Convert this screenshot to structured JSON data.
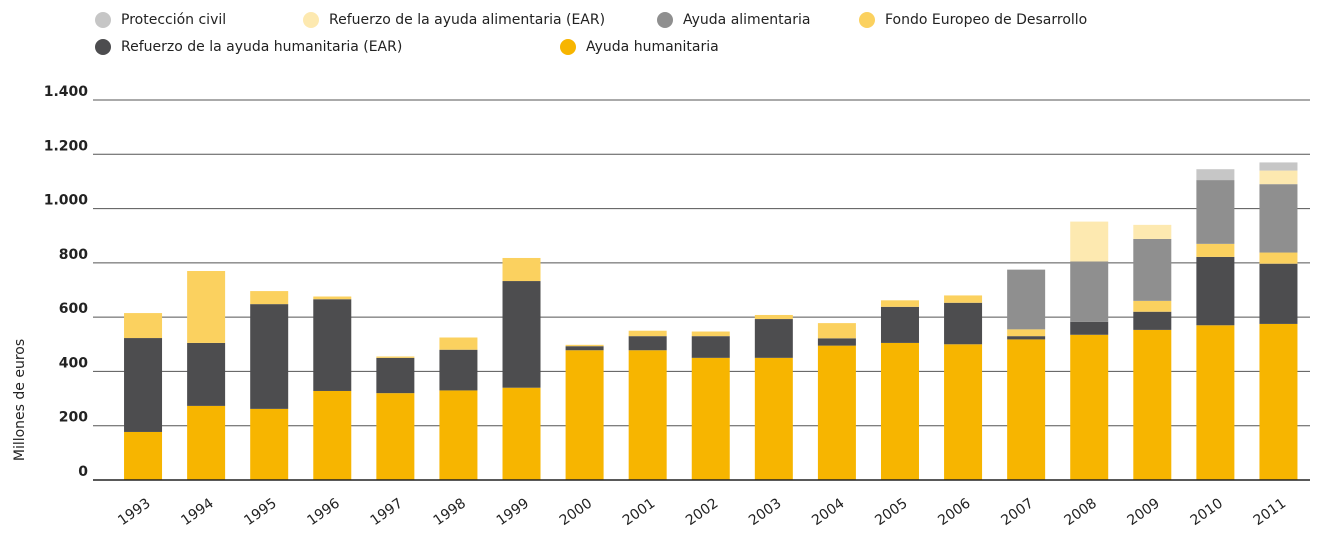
{
  "chart_data": {
    "type": "stacked_bar",
    "y_label": "Millones de euros",
    "categories": [
      "1993",
      "1994",
      "1995",
      "1996",
      "1997",
      "1998",
      "1999",
      "2000",
      "2001",
      "2002",
      "2003",
      "2004",
      "2005",
      "2006",
      "2007",
      "2008",
      "2009",
      "2010",
      "2011"
    ],
    "series": [
      {
        "name": "Protección civil",
        "color": "#c6c6c6",
        "values": [
          0,
          0,
          0,
          0,
          0,
          0,
          0,
          0,
          0,
          0,
          0,
          0,
          0,
          0,
          0,
          0,
          0,
          40,
          30
        ]
      },
      {
        "name": "Refuerzo de la ayuda alimentaria (EAR)",
        "color": "#fde9b0",
        "values": [
          0,
          0,
          0,
          0,
          0,
          0,
          0,
          0,
          0,
          0,
          0,
          0,
          0,
          0,
          0,
          147,
          52,
          0,
          50
        ]
      },
      {
        "name": "Ayuda alimentaria",
        "color": "#8f8f8f",
        "values": [
          0,
          0,
          0,
          0,
          0,
          0,
          0,
          0,
          0,
          0,
          0,
          0,
          0,
          0,
          220,
          222,
          228,
          235,
          252
        ]
      },
      {
        "name": "Fondo Europeo de Desarrollo",
        "color": "#fbd15f",
        "values": [
          92,
          265,
          48,
          10,
          5,
          45,
          85,
          5,
          20,
          17,
          15,
          56,
          24,
          27,
          25,
          0,
          40,
          48,
          41
        ]
      },
      {
        "name": "Refuerzo de la ayuda humanitaria (EAR)",
        "color": "#4d4d4f",
        "values": [
          346,
          232,
          386,
          338,
          130,
          150,
          393,
          15,
          52,
          80,
          143,
          27,
          133,
          153,
          12,
          48,
          67,
          252,
          222
        ]
      },
      {
        "name": "Ayuda humanitaria",
        "color": "#f7b500",
        "values": [
          177,
          273,
          262,
          328,
          320,
          330,
          340,
          478,
          478,
          450,
          450,
          495,
          505,
          500,
          518,
          535,
          553,
          570,
          575
        ]
      }
    ],
    "ylim": [
      0,
      1400
    ],
    "yticks": [
      0,
      200,
      400,
      600,
      800,
      {
        "value": 1000,
        "label": "1.000"
      },
      {
        "value": 1200,
        "label": "1.200"
      },
      {
        "value": 1400,
        "label": "1.400"
      }
    ],
    "grid": true
  }
}
